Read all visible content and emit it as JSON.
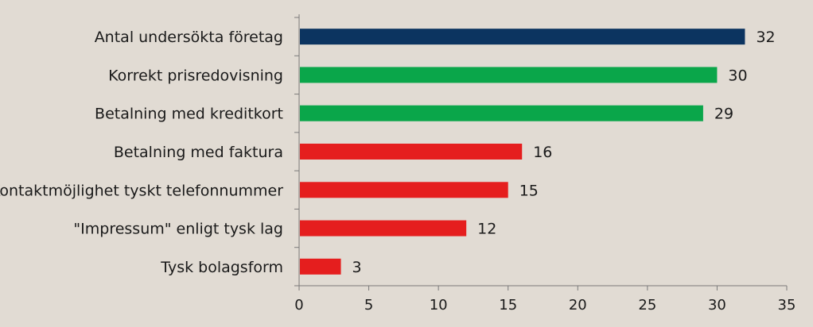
{
  "chart_data": {
    "type": "bar",
    "orientation": "horizontal",
    "categories": [
      "Antal undersökta företag",
      "Korrekt prisredovisning",
      "Betalning med kreditkort",
      "Betalning med faktura",
      "Kontaktmöjlighet tyskt telefonnummer",
      "\"Impressum\" enligt tysk lag",
      "Tysk bolagsform"
    ],
    "values": [
      32,
      30,
      29,
      16,
      15,
      12,
      3
    ],
    "value_labels": [
      "32",
      "30",
      "29",
      "16",
      "15",
      "12",
      "3"
    ],
    "colors": [
      "#0c3460",
      "#0aa64a",
      "#0aa64a",
      "#e51e1e",
      "#e51e1e",
      "#e51e1e",
      "#e51e1e"
    ],
    "xlim": [
      0,
      35
    ],
    "xticks": [
      0,
      5,
      10,
      15,
      20,
      25,
      30,
      35
    ],
    "xtick_labels": [
      "0",
      "5",
      "10",
      "15",
      "20",
      "25",
      "30",
      "35"
    ],
    "grid": false,
    "legend": "none",
    "title": "",
    "xlabel": "",
    "ylabel": ""
  }
}
